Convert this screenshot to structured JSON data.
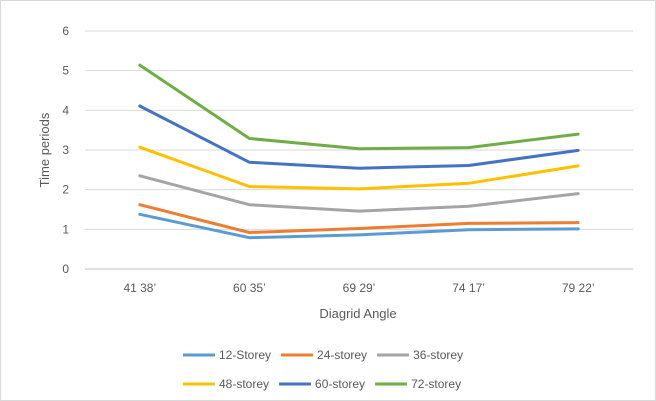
{
  "chart_data": {
    "type": "line",
    "title": "",
    "xlabel": "Diagrid Angle",
    "ylabel": "Time periods",
    "ylim": [
      0,
      6
    ],
    "yticks": [
      0,
      1,
      2,
      3,
      4,
      5,
      6
    ],
    "grid": true,
    "legend_position": "bottom",
    "categories": [
      "41 38’",
      "60 35’",
      "69 29’",
      "74 17’",
      "79 22’"
    ],
    "series": [
      {
        "name": "12-Storey",
        "color": "#5b9bd5",
        "values": [
          1.38,
          0.79,
          0.86,
          0.99,
          1.01
        ]
      },
      {
        "name": "24-storey",
        "color": "#ed7d31",
        "values": [
          1.62,
          0.92,
          1.02,
          1.15,
          1.17
        ]
      },
      {
        "name": "36-storey",
        "color": "#a5a5a5",
        "values": [
          2.35,
          1.62,
          1.46,
          1.58,
          1.9
        ]
      },
      {
        "name": "48-storey",
        "color": "#ffc000",
        "values": [
          3.07,
          2.08,
          2.02,
          2.16,
          2.6
        ]
      },
      {
        "name": "60-storey",
        "color": "#4472c4",
        "values": [
          4.11,
          2.69,
          2.54,
          2.61,
          2.99
        ]
      },
      {
        "name": "72-storey",
        "color": "#70ad47",
        "values": [
          5.14,
          3.29,
          3.03,
          3.06,
          3.4
        ]
      }
    ]
  }
}
